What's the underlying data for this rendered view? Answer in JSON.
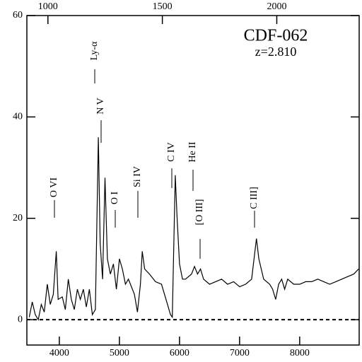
{
  "chart_data": {
    "type": "line",
    "title": "CDF-062",
    "subtitle": "z=2.810",
    "xlim": [
      3460,
      8990
    ],
    "xticks": [
      4000,
      5000,
      6000,
      7000,
      8000
    ],
    "x2lim": [
      908,
      2360
    ],
    "x2ticks": [
      1000,
      1500,
      2000
    ],
    "ylim": [
      -5,
      60
    ],
    "yticks": [
      0,
      20,
      40,
      60
    ],
    "reference_line": 0,
    "color": "#000000",
    "annotations": [
      "O VI",
      "Ly-α",
      "N V",
      "O I",
      "Si IV",
      "C IV",
      "He II",
      "[O III]",
      "C III]"
    ],
    "x": [
      3500,
      3550,
      3600,
      3650,
      3700,
      3750,
      3800,
      3850,
      3900,
      3950,
      3980,
      4050,
      4100,
      4150,
      4200,
      4250,
      4300,
      4350,
      4400,
      4450,
      4500,
      4550,
      4600,
      4650,
      4680,
      4720,
      4760,
      4800,
      4850,
      4900,
      4950,
      5000,
      5050,
      5100,
      5150,
      5200,
      5250,
      5300,
      5350,
      5380,
      5420,
      5500,
      5600,
      5700,
      5800,
      5850,
      5880,
      5900,
      5930,
      5960,
      6000,
      6050,
      6100,
      6200,
      6250,
      6300,
      6350,
      6400,
      6500,
      6600,
      6700,
      6800,
      6900,
      7000,
      7100,
      7200,
      7280,
      7320,
      7400,
      7500,
      7550,
      7600,
      7650,
      7700,
      7750,
      7800,
      7900,
      8000,
      8100,
      8200,
      8300,
      8400,
      8500,
      8600,
      8700,
      8800,
      8900,
      8980
    ],
    "values": [
      0.5,
      3.5,
      1,
      0,
      3,
      1.5,
      7,
      3,
      5,
      13.5,
      4,
      4.5,
      2,
      8,
      4,
      2,
      6,
      4,
      6,
      2.5,
      6,
      1,
      2,
      36,
      15,
      8,
      28,
      12,
      9,
      11,
      6,
      12,
      10,
      7,
      8,
      6.5,
      5,
      1.5,
      7,
      13.5,
      10,
      9,
      7.5,
      7,
      3,
      1,
      0.5,
      12,
      28.5,
      20,
      11,
      8,
      8,
      9,
      10.5,
      9,
      10,
      8,
      7,
      7.5,
      8,
      7,
      7.5,
      6.5,
      7,
      8,
      16,
      12,
      8,
      7,
      6,
      4,
      7,
      8,
      6,
      8,
      7,
      7,
      7.5,
      7.5,
      8,
      7.5,
      7,
      7.5,
      8,
      8.5,
      9,
      10
    ]
  }
}
